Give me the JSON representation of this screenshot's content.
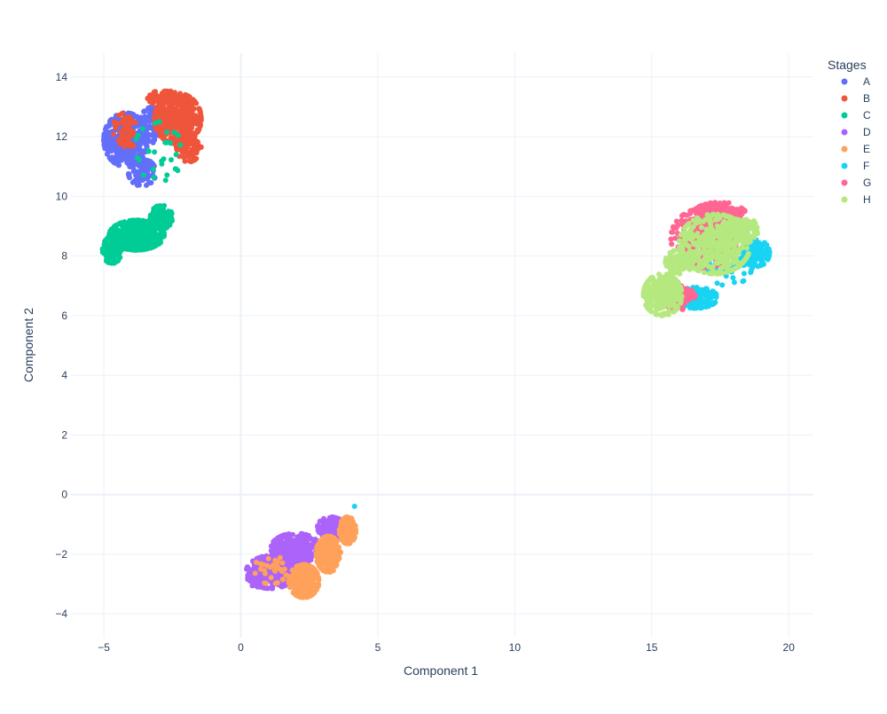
{
  "chart_data": {
    "type": "scatter",
    "xlabel": "Component 1",
    "ylabel": "Component 2",
    "xlim": [
      -6.2,
      20.9
    ],
    "ylim": [
      -4.8,
      14.8
    ],
    "x_ticks": [
      -5,
      0,
      5,
      10,
      15,
      20
    ],
    "x_tick_labels": [
      "−5",
      "0",
      "5",
      "10",
      "15",
      "20"
    ],
    "y_ticks": [
      -4,
      -2,
      0,
      2,
      4,
      6,
      8,
      10,
      12,
      14
    ],
    "y_tick_labels": [
      "−4",
      "−2",
      "0",
      "2",
      "4",
      "6",
      "8",
      "10",
      "12",
      "14"
    ],
    "grid": true,
    "zero_lines": true,
    "legend": {
      "title": "Stages",
      "placement": "top-right"
    },
    "series": [
      {
        "name": "A",
        "color": "#636efa",
        "blobs": [
          {
            "cx": -4.2,
            "cy": 11.9,
            "rx": 0.8,
            "ry": 0.9,
            "n": 360
          },
          {
            "cx": -3.6,
            "cy": 10.8,
            "rx": 0.5,
            "ry": 0.45,
            "n": 90
          },
          {
            "cx": -3.2,
            "cy": 12.4,
            "rx": 0.5,
            "ry": 0.6,
            "n": 80
          }
        ]
      },
      {
        "name": "B",
        "color": "#ef553b",
        "blobs": [
          {
            "cx": -2.3,
            "cy": 12.6,
            "rx": 0.85,
            "ry": 0.85,
            "n": 380
          },
          {
            "cx": -1.9,
            "cy": 11.7,
            "rx": 0.45,
            "ry": 0.55,
            "n": 100
          },
          {
            "cx": -4.2,
            "cy": 12.2,
            "rx": 0.5,
            "ry": 0.6,
            "n": 60
          },
          {
            "cx": -2.8,
            "cy": 13.3,
            "rx": 0.6,
            "ry": 0.25,
            "n": 60
          }
        ]
      },
      {
        "name": "C",
        "color": "#00cc96",
        "blobs": [
          {
            "cx": -3.8,
            "cy": 8.7,
            "rx": 1.0,
            "ry": 0.5,
            "n": 420
          },
          {
            "cx": -4.7,
            "cy": 8.2,
            "rx": 0.35,
            "ry": 0.45,
            "n": 120
          },
          {
            "cx": -2.9,
            "cy": 9.3,
            "rx": 0.4,
            "ry": 0.4,
            "n": 100
          },
          {
            "cx": -3.0,
            "cy": 11.5,
            "rx": 0.9,
            "ry": 1.0,
            "n": 30
          }
        ]
      },
      {
        "name": "D",
        "color": "#ab63fa",
        "blobs": [
          {
            "cx": 1.1,
            "cy": -2.6,
            "rx": 0.9,
            "ry": 0.55,
            "n": 320
          },
          {
            "cx": 2.0,
            "cy": -1.8,
            "rx": 0.9,
            "ry": 0.5,
            "n": 260
          },
          {
            "cx": 3.3,
            "cy": -1.1,
            "rx": 0.5,
            "ry": 0.35,
            "n": 120
          },
          {
            "cx": 0.6,
            "cy": -2.8,
            "rx": 0.35,
            "ry": 0.3,
            "n": 80
          }
        ]
      },
      {
        "name": "E",
        "color": "#ffa15a",
        "blobs": [
          {
            "cx": 2.3,
            "cy": -2.9,
            "rx": 0.55,
            "ry": 0.55,
            "n": 320
          },
          {
            "cx": 3.2,
            "cy": -2.0,
            "rx": 0.45,
            "ry": 0.6,
            "n": 240
          },
          {
            "cx": 3.9,
            "cy": -1.2,
            "rx": 0.3,
            "ry": 0.45,
            "n": 140
          },
          {
            "cx": 1.1,
            "cy": -2.5,
            "rx": 0.6,
            "ry": 0.5,
            "n": 30
          }
        ]
      },
      {
        "name": "F",
        "color": "#19d3f3",
        "blobs": [
          {
            "cx": 16.6,
            "cy": 6.6,
            "rx": 0.8,
            "ry": 0.35,
            "n": 160
          },
          {
            "cx": 18.8,
            "cy": 8.1,
            "rx": 0.5,
            "ry": 0.45,
            "n": 130
          },
          {
            "cx": 17.8,
            "cy": 7.8,
            "rx": 0.9,
            "ry": 0.8,
            "n": 70
          },
          {
            "cx": 4.15,
            "cy": -0.4,
            "rx": 0.02,
            "ry": 0.02,
            "n": 1
          }
        ]
      },
      {
        "name": "G",
        "color": "#ff6692",
        "blobs": [
          {
            "cx": 16.9,
            "cy": 8.6,
            "rx": 1.2,
            "ry": 1.0,
            "n": 300
          },
          {
            "cx": 17.5,
            "cy": 9.5,
            "rx": 0.9,
            "ry": 0.3,
            "n": 120
          },
          {
            "cx": 16.0,
            "cy": 6.6,
            "rx": 0.6,
            "ry": 0.4,
            "n": 80
          }
        ]
      },
      {
        "name": "H",
        "color": "#b6e880",
        "blobs": [
          {
            "cx": 17.3,
            "cy": 8.4,
            "rx": 1.3,
            "ry": 1.0,
            "n": 420
          },
          {
            "cx": 15.4,
            "cy": 6.7,
            "rx": 0.7,
            "ry": 0.7,
            "n": 300
          },
          {
            "cx": 18.3,
            "cy": 8.9,
            "rx": 0.6,
            "ry": 0.4,
            "n": 120
          },
          {
            "cx": 16.0,
            "cy": 7.8,
            "rx": 0.5,
            "ry": 0.4,
            "n": 100
          }
        ]
      }
    ]
  }
}
